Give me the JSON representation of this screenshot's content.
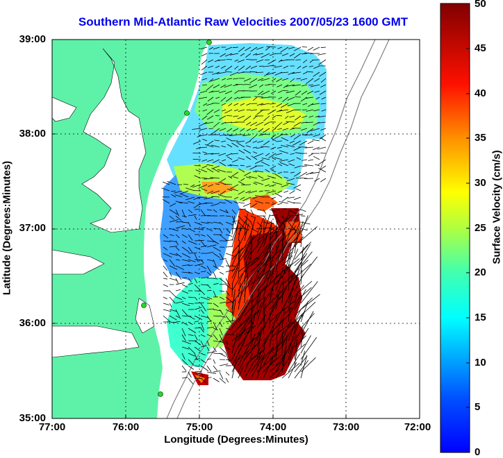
{
  "title": "Southern Mid-Atlantic Raw Velocities 2007/05/23 1600 GMT",
  "x_axis": {
    "label": "Longitude (Degrees:Minutes)",
    "ticks": [
      "77:00",
      "76:00",
      "75:00",
      "74:00",
      "73:00",
      "72:00"
    ]
  },
  "y_axis": {
    "label": "Latitude (Degrees:Minutes)",
    "ticks": [
      "39:00",
      "38:00",
      "37:00",
      "36:00",
      "35:00"
    ]
  },
  "colorbar": {
    "label": "Surface Velocity (cm/s)",
    "ticks": [
      "50",
      "45",
      "40",
      "35",
      "30",
      "25",
      "20",
      "15",
      "10",
      "5",
      "0"
    ],
    "range": [
      0,
      50
    ],
    "colormap": "jet"
  },
  "colors": {
    "land": "#5ef2a8",
    "title": "#0000ee",
    "arrow": "#000000",
    "station": "#22dd22"
  }
}
